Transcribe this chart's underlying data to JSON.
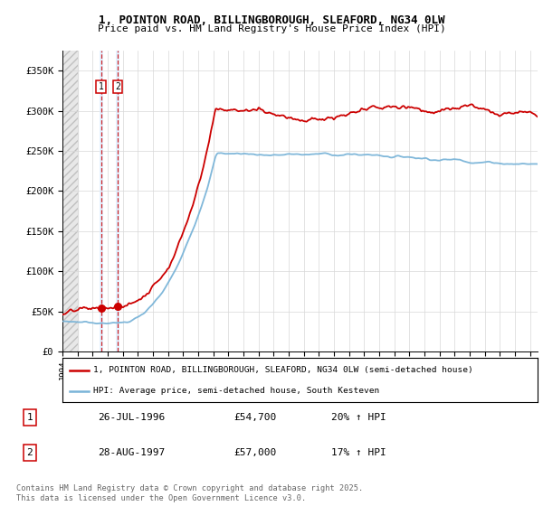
{
  "title_line1": "1, POINTON ROAD, BILLINGBOROUGH, SLEAFORD, NG34 0LW",
  "title_line2": "Price paid vs. HM Land Registry's House Price Index (HPI)",
  "ylim": [
    0,
    375000
  ],
  "yticks": [
    0,
    50000,
    100000,
    150000,
    200000,
    250000,
    300000,
    350000
  ],
  "ytick_labels": [
    "£0",
    "£50K",
    "£100K",
    "£150K",
    "£200K",
    "£250K",
    "£300K",
    "£350K"
  ],
  "hpi_color": "#7ab4d8",
  "price_color": "#cc0000",
  "purchase1_date": 1996.57,
  "purchase1_price": 54700,
  "purchase1_label": "1",
  "purchase2_date": 1997.66,
  "purchase2_price": 57000,
  "purchase2_label": "2",
  "legend_line1": "1, POINTON ROAD, BILLINGBOROUGH, SLEAFORD, NG34 0LW (semi-detached house)",
  "legend_line2": "HPI: Average price, semi-detached house, South Kesteven",
  "table_rows": [
    {
      "num": "1",
      "date": "26-JUL-1996",
      "price": "£54,700",
      "hpi": "20% ↑ HPI"
    },
    {
      "num": "2",
      "date": "28-AUG-1997",
      "price": "£57,000",
      "hpi": "17% ↑ HPI"
    }
  ],
  "footnote": "Contains HM Land Registry data © Crown copyright and database right 2025.\nThis data is licensed under the Open Government Licence v3.0.",
  "hatch_end_year": 1995.0,
  "xmin": 1994.0,
  "xmax": 2025.5
}
